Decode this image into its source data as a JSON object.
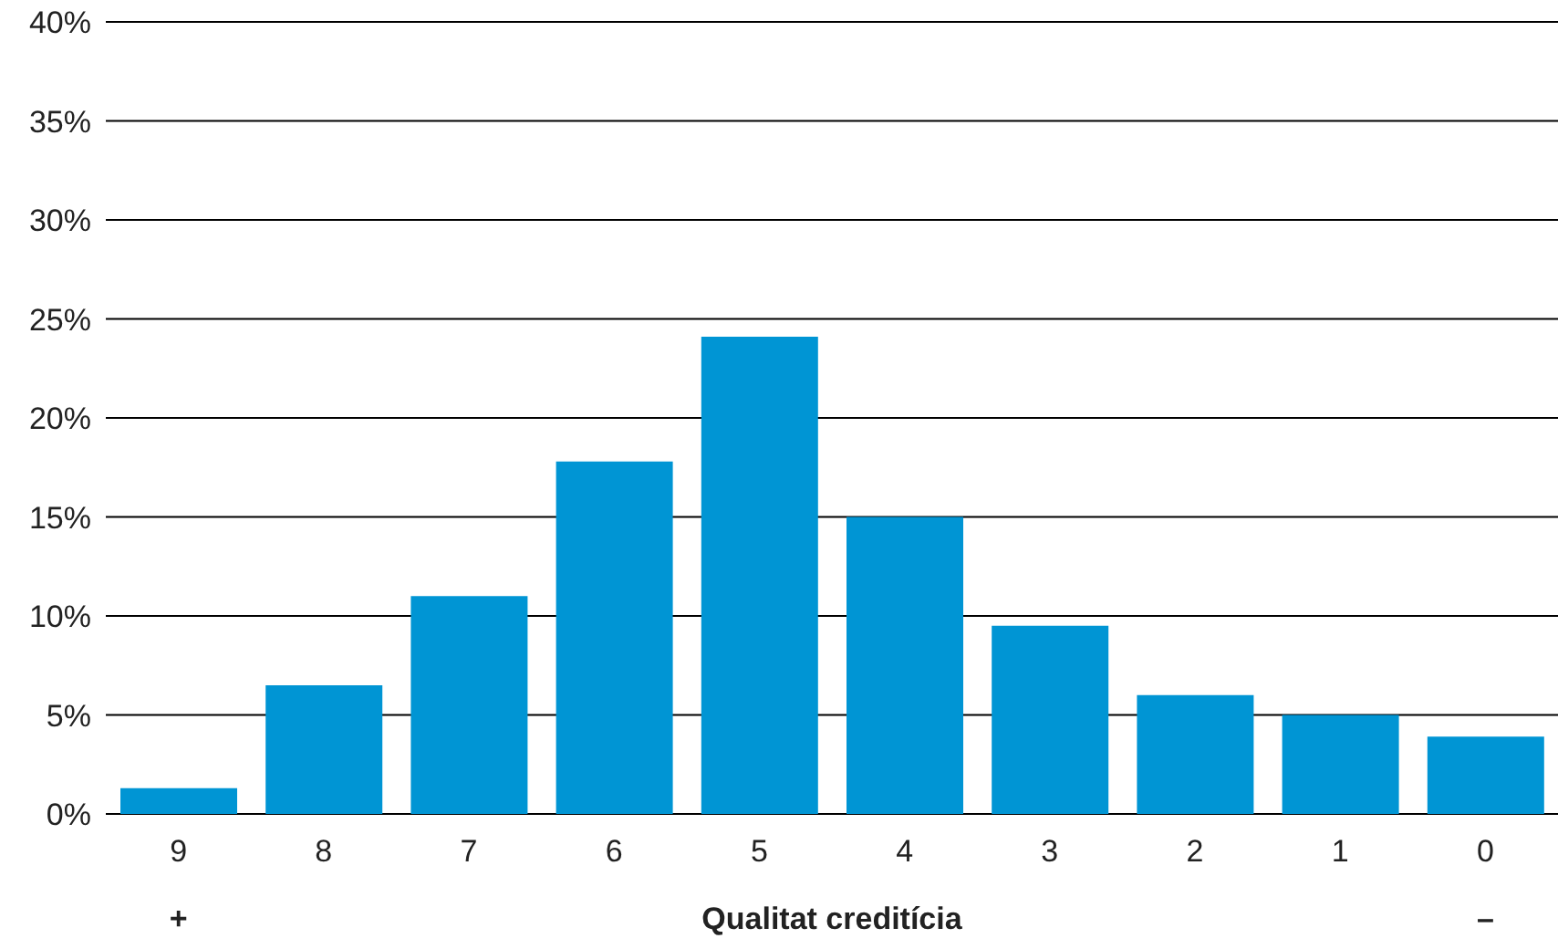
{
  "chart_data": {
    "type": "bar",
    "xlabel": "Qualitat creditícia",
    "categories": [
      "9",
      "8",
      "7",
      "6",
      "5",
      "4",
      "3",
      "2",
      "1",
      "0"
    ],
    "values": [
      1.3,
      6.5,
      11.0,
      17.8,
      24.1,
      15.0,
      9.5,
      6.0,
      5.0,
      3.9
    ],
    "color": "#0095d4",
    "ylim": [
      0,
      40
    ],
    "yticks": [
      {
        "value": 0,
        "label": "0%"
      },
      {
        "value": 5,
        "label": "5%"
      },
      {
        "value": 10,
        "label": "10%"
      },
      {
        "value": 15,
        "label": "15%"
      },
      {
        "value": 20,
        "label": "20%"
      },
      {
        "value": 25,
        "label": "25%"
      },
      {
        "value": 30,
        "label": "30%"
      },
      {
        "value": 35,
        "label": "35%"
      },
      {
        "value": 40,
        "label": "40%"
      }
    ],
    "grid": "y",
    "annotations": [
      "+",
      "–"
    ]
  }
}
